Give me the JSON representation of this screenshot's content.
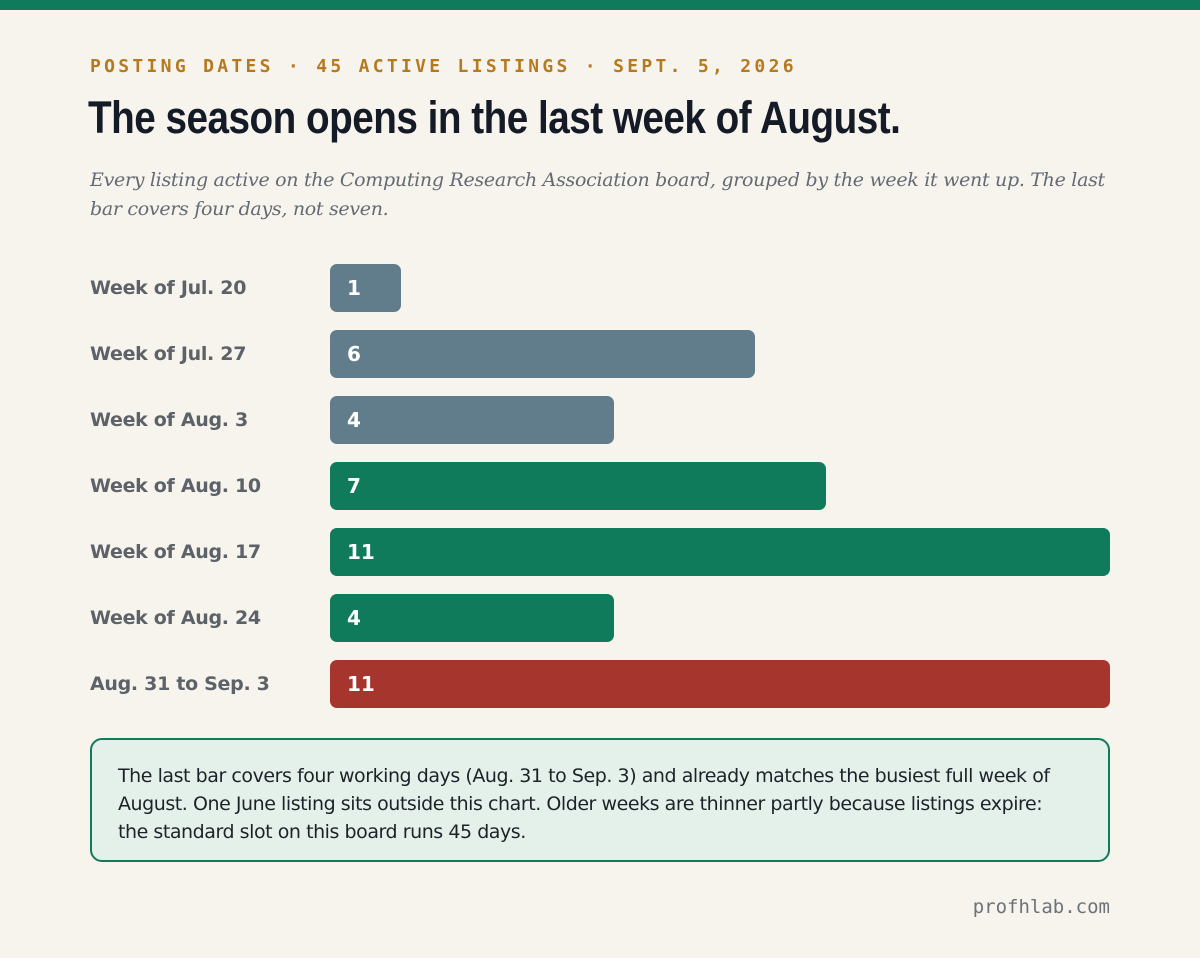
{
  "kicker": "POSTING DATES · 45 ACTIVE LISTINGS · SEPT. 5, 2026",
  "title": "The season opens in the last week of August.",
  "subtitle": "Every listing active on the Computing Research Association board, grouped by the week it went up. The last bar covers four days, not seven.",
  "note": "The last bar covers four working days (Aug. 31 to Sep. 3) and already matches the busiest full week of August. One June listing sits outside this chart. Older weeks are thinner partly because listings expire: the standard slot on this board runs 45 days.",
  "footer": "profhlab.com",
  "colors": {
    "july_early_aug": "#617d8c",
    "august": "#0f7b5a",
    "latest": "#a6352d",
    "accent": "#b5791f"
  },
  "chart_data": {
    "type": "bar",
    "orientation": "horizontal",
    "categories": [
      "Week of Jul. 20",
      "Week of Jul. 27",
      "Week of Aug. 3",
      "Week of Aug. 10",
      "Week of Aug. 17",
      "Week of Aug. 24",
      "Aug. 31 to Sep. 3"
    ],
    "values": [
      1,
      6,
      4,
      7,
      11,
      4,
      11
    ],
    "bar_colors": [
      "#617d8c",
      "#617d8c",
      "#617d8c",
      "#0f7b5a",
      "#0f7b5a",
      "#0f7b5a",
      "#a6352d"
    ],
    "data_labels": [
      "1",
      "6",
      "4",
      "7",
      "11",
      "4",
      "11"
    ],
    "xlim": [
      0,
      11
    ],
    "grid": false,
    "legend": "none"
  }
}
